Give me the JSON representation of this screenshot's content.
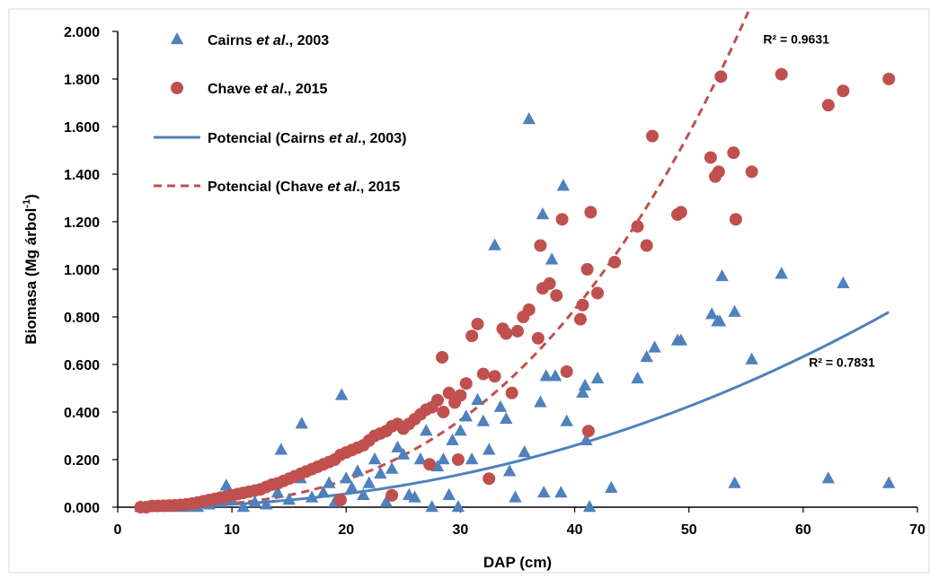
{
  "chart_data": {
    "type": "scatter",
    "xlabel": "DAP (cm)",
    "ylabel_main": "Biomasa (Mg árbol",
    "ylabel_sup": "-1",
    "ylabel_end": ")",
    "xlim": [
      0,
      70
    ],
    "ylim": [
      0,
      2.0
    ],
    "x_ticks": [
      0,
      10,
      20,
      30,
      40,
      50,
      60,
      70
    ],
    "x_tick_labels": [
      "0",
      "10",
      "20",
      "30",
      "40",
      "50",
      "60",
      "70"
    ],
    "y_ticks": [
      0,
      0.2,
      0.4,
      0.6,
      0.8,
      1.0,
      1.2,
      1.4,
      1.6,
      1.8,
      2.0
    ],
    "y_tick_labels": [
      "0.000",
      "0.200",
      "0.400",
      "0.600",
      "0.800",
      "1.000",
      "1.200",
      "1.400",
      "1.600",
      "1.800",
      "2.000"
    ],
    "grid": false,
    "legend_position": "top-left",
    "legend": [
      {
        "pre": "Cairns ",
        "ital": "et al",
        "post": "., 2003",
        "marker": "triangle",
        "color": "#4F81BD"
      },
      {
        "pre": "Chave ",
        "ital": "et al",
        "post": "., 2015",
        "marker": "circle",
        "color": "#C0504D"
      },
      {
        "pre": "Potencial (Cairns ",
        "ital": "et al",
        "post": "., 2003)",
        "marker": "solid-line",
        "color": "#4F81BD"
      },
      {
        "pre": "Potencial (Chave ",
        "ital": "et al",
        "post": "., 2015",
        "marker": "dashed-line",
        "color": "#C0504D"
      }
    ],
    "annotations": [
      {
        "text": "R² = 0.9631",
        "x": 56.5,
        "y": 1.95
      },
      {
        "text": "R² = 0.7831",
        "x": 60.5,
        "y": 0.59
      }
    ],
    "series": [
      {
        "name": "Cairns et al., 2003",
        "marker": "triangle",
        "color": "#4F81BD",
        "points": [
          [
            2,
            0
          ],
          [
            3,
            0
          ],
          [
            4,
            0
          ],
          [
            5,
            0
          ],
          [
            6,
            0
          ],
          [
            7,
            0
          ],
          [
            8,
            0.01
          ],
          [
            9,
            0.02
          ],
          [
            9.5,
            0.09
          ],
          [
            10,
            0.03
          ],
          [
            11,
            0
          ],
          [
            12,
            0.02
          ],
          [
            13,
            0.01
          ],
          [
            14,
            0.06
          ],
          [
            14.3,
            0.24
          ],
          [
            15,
            0.03
          ],
          [
            16,
            0.12
          ],
          [
            16.1,
            0.35
          ],
          [
            17,
            0.04
          ],
          [
            18,
            0.06
          ],
          [
            18.5,
            0.1
          ],
          [
            19,
            0.02
          ],
          [
            19.6,
            0.47
          ],
          [
            20,
            0.12
          ],
          [
            20.5,
            0.08
          ],
          [
            21,
            0.15
          ],
          [
            21.5,
            0.05
          ],
          [
            22,
            0.1
          ],
          [
            22.5,
            0.2
          ],
          [
            23,
            0.14
          ],
          [
            23.5,
            0.02
          ],
          [
            24,
            0.16
          ],
          [
            24.5,
            0.25
          ],
          [
            25,
            0.22
          ],
          [
            25.5,
            0.05
          ],
          [
            26,
            0.04
          ],
          [
            26.5,
            0.2
          ],
          [
            27,
            0.32
          ],
          [
            27.5,
            0
          ],
          [
            28,
            0.17
          ],
          [
            28.5,
            0.2
          ],
          [
            29,
            0.05
          ],
          [
            29.3,
            0.28
          ],
          [
            29.8,
            0
          ],
          [
            30,
            0.32
          ],
          [
            30.5,
            0.38
          ],
          [
            31,
            0.2
          ],
          [
            31.5,
            0.45
          ],
          [
            32,
            0.36
          ],
          [
            32.5,
            0.24
          ],
          [
            33,
            1.1
          ],
          [
            33.5,
            0.42
          ],
          [
            34,
            0.37
          ],
          [
            34.3,
            0.15
          ],
          [
            34.8,
            0.04
          ],
          [
            35.6,
            0.23
          ],
          [
            36,
            1.63
          ],
          [
            37,
            0.44
          ],
          [
            37.2,
            1.23
          ],
          [
            37.3,
            0.06
          ],
          [
            37.5,
            0.55
          ],
          [
            38,
            1.04
          ],
          [
            38.3,
            0.55
          ],
          [
            38.8,
            0.06
          ],
          [
            39,
            1.35
          ],
          [
            39.3,
            0.36
          ],
          [
            40.7,
            0.48
          ],
          [
            40.9,
            0.51
          ],
          [
            41,
            0.28
          ],
          [
            41.3,
            0
          ],
          [
            42,
            0.54
          ],
          [
            43.2,
            0.08
          ],
          [
            45.5,
            0.54
          ],
          [
            46.3,
            0.63
          ],
          [
            47,
            0.67
          ],
          [
            49,
            0.7
          ],
          [
            49.3,
            0.7
          ],
          [
            52,
            0.81
          ],
          [
            52.5,
            0.78
          ],
          [
            52.7,
            0.78
          ],
          [
            52.9,
            0.97
          ],
          [
            54,
            0.82
          ],
          [
            54,
            0.1
          ],
          [
            55.5,
            0.62
          ],
          [
            58.1,
            0.98
          ],
          [
            62.2,
            0.12
          ],
          [
            63.5,
            0.94
          ],
          [
            67.5,
            0.1
          ]
        ]
      },
      {
        "name": "Chave et al., 2015",
        "marker": "circle",
        "color": "#C0504D",
        "points": [
          [
            2,
            0
          ],
          [
            2.5,
            0
          ],
          [
            3,
            0.005
          ],
          [
            3.5,
            0.005
          ],
          [
            4,
            0.006
          ],
          [
            4.5,
            0.007
          ],
          [
            5,
            0.008
          ],
          [
            5.5,
            0.01
          ],
          [
            6,
            0.012
          ],
          [
            6.5,
            0.015
          ],
          [
            7,
            0.02
          ],
          [
            7.5,
            0.025
          ],
          [
            8,
            0.03
          ],
          [
            8.5,
            0.035
          ],
          [
            9,
            0.04
          ],
          [
            9.5,
            0.045
          ],
          [
            10,
            0.05
          ],
          [
            10.5,
            0.055
          ],
          [
            11,
            0.06
          ],
          [
            11.5,
            0.065
          ],
          [
            12,
            0.07
          ],
          [
            12.5,
            0.075
          ],
          [
            13,
            0.085
          ],
          [
            13.5,
            0.095
          ],
          [
            14,
            0.1
          ],
          [
            14.5,
            0.11
          ],
          [
            15,
            0.12
          ],
          [
            15.5,
            0.13
          ],
          [
            16,
            0.14
          ],
          [
            16.5,
            0.15
          ],
          [
            17,
            0.16
          ],
          [
            17.5,
            0.17
          ],
          [
            18,
            0.18
          ],
          [
            18.5,
            0.19
          ],
          [
            19,
            0.2
          ],
          [
            19.5,
            0.22
          ],
          [
            20,
            0.23
          ],
          [
            20.5,
            0.24
          ],
          [
            21,
            0.25
          ],
          [
            21.5,
            0.26
          ],
          [
            22,
            0.28
          ],
          [
            22.5,
            0.3
          ],
          [
            23,
            0.31
          ],
          [
            23.5,
            0.32
          ],
          [
            24,
            0.34
          ],
          [
            24.5,
            0.35
          ],
          [
            25,
            0.33
          ],
          [
            25.5,
            0.35
          ],
          [
            26,
            0.37
          ],
          [
            26.5,
            0.39
          ],
          [
            27,
            0.41
          ],
          [
            27.5,
            0.42
          ],
          [
            28,
            0.45
          ],
          [
            28.4,
            0.63
          ],
          [
            28.5,
            0.4
          ],
          [
            29,
            0.48
          ],
          [
            29.5,
            0.44
          ],
          [
            30,
            0.47
          ],
          [
            30.5,
            0.52
          ],
          [
            31,
            0.72
          ],
          [
            31.5,
            0.77
          ],
          [
            32,
            0.56
          ],
          [
            32.5,
            0.12
          ],
          [
            33,
            0.55
          ],
          [
            33.7,
            0.75
          ],
          [
            34,
            0.73
          ],
          [
            34.5,
            0.48
          ],
          [
            35,
            0.74
          ],
          [
            35.5,
            0.8
          ],
          [
            36,
            0.83
          ],
          [
            36.8,
            0.71
          ],
          [
            37,
            1.1
          ],
          [
            37.2,
            0.92
          ],
          [
            37.8,
            0.94
          ],
          [
            38.4,
            0.89
          ],
          [
            38.9,
            1.21
          ],
          [
            39.3,
            0.57
          ],
          [
            40.5,
            0.79
          ],
          [
            40.7,
            0.85
          ],
          [
            41.1,
            1.0
          ],
          [
            41.4,
            1.24
          ],
          [
            42,
            0.9
          ],
          [
            43.5,
            1.03
          ],
          [
            45.5,
            1.18
          ],
          [
            46.3,
            1.1
          ],
          [
            46.8,
            1.56
          ],
          [
            49,
            1.23
          ],
          [
            49.3,
            1.24
          ],
          [
            51.9,
            1.47
          ],
          [
            52.3,
            1.39
          ],
          [
            52.6,
            1.41
          ],
          [
            52.8,
            1.81
          ],
          [
            53.9,
            1.49
          ],
          [
            54.1,
            1.21
          ],
          [
            55.5,
            1.41
          ],
          [
            58.1,
            1.82
          ],
          [
            62.2,
            1.69
          ],
          [
            63.5,
            1.75
          ],
          [
            67.5,
            1.8
          ],
          [
            19.5,
            0.03
          ],
          [
            24,
            0.05
          ],
          [
            27.3,
            0.18
          ],
          [
            29.8,
            0.2
          ],
          [
            41.2,
            0.32
          ]
        ]
      }
    ],
    "trendlines": [
      {
        "name": "Potencial (Cairns et al., 2003)",
        "type": "power",
        "a": 7.75e-05,
        "b": 2.2,
        "x_range": [
          2,
          67.5
        ],
        "style": "solid",
        "color": "#4F81BD"
      },
      {
        "name": "Potencial (Chave et al., 2015",
        "type": "power",
        "a": 2.26e-05,
        "b": 2.85,
        "x_range": [
          2,
          55.2
        ],
        "style": "dashed",
        "color": "#C0504D"
      }
    ]
  }
}
